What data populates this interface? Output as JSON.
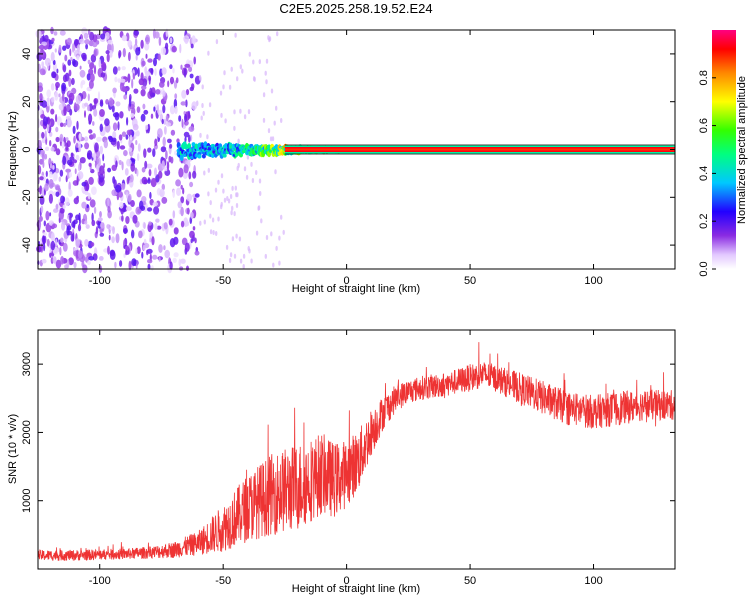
{
  "title": "C2E5.2025.258.19.52.E24",
  "chart_data": [
    {
      "type": "heatmap",
      "xlabel": "Height of straight line (km)",
      "ylabel": "Frequency (Hz)",
      "xlim": [
        -125,
        133
      ],
      "ylim": [
        -50,
        50
      ],
      "xticks": [
        -100,
        -50,
        0,
        50,
        100
      ],
      "yticks": [
        -40,
        -20,
        0,
        20,
        40
      ],
      "colorbar": {
        "label": "Normalized spectral amplitude",
        "range": [
          0,
          1
        ],
        "ticks": [
          "0.0",
          "0.2",
          "0.4",
          "0.6",
          "0.8"
        ]
      },
      "carrier": {
        "frequency": 0,
        "x_start": -68,
        "x_end": 133,
        "amplitude_profile": [
          {
            "x": -68,
            "amplitude": 0.45
          },
          {
            "x": -55,
            "amplitude": 0.4
          },
          {
            "x": -40,
            "amplitude": 0.5
          },
          {
            "x": -25,
            "amplitude": 0.75
          },
          {
            "x": -10,
            "amplitude": 0.85
          },
          {
            "x": 0,
            "amplitude": 0.9
          },
          {
            "x": 10,
            "amplitude": 0.95
          },
          {
            "x": 133,
            "amplitude": 0.95
          }
        ]
      },
      "noise_region": {
        "x_start": -125,
        "x_end": -60,
        "amplitude": 0.15
      }
    },
    {
      "type": "line",
      "xlabel": "Height of straight line (km)",
      "ylabel": "SNR (10 * v/v)",
      "xlim": [
        -125,
        133
      ],
      "ylim": [
        0,
        3500
      ],
      "xticks": [
        -100,
        -50,
        0,
        50,
        100
      ],
      "yticks": [
        1000,
        2000,
        3000
      ],
      "color": "#ee3333",
      "series": [
        {
          "x": [
            -125,
            -110,
            -100,
            -90,
            -80,
            -70,
            -60,
            -50,
            -40,
            -30,
            -20,
            -10,
            -5,
            0,
            5,
            10,
            15,
            20,
            25,
            30,
            40,
            50,
            55,
            60,
            70,
            80,
            90,
            100,
            110,
            120,
            133
          ],
          "y": [
            200,
            200,
            210,
            220,
            240,
            280,
            380,
            600,
            900,
            1100,
            1200,
            1400,
            1300,
            1400,
            1600,
            2000,
            2300,
            2500,
            2600,
            2650,
            2700,
            2800,
            2850,
            2800,
            2650,
            2500,
            2350,
            2300,
            2350,
            2400,
            2400
          ],
          "noise": [
            80,
            80,
            80,
            80,
            90,
            120,
            180,
            350,
            500,
            600,
            650,
            600,
            550,
            500,
            450,
            350,
            250,
            200,
            180,
            180,
            180,
            200,
            200,
            200,
            230,
            250,
            250,
            250,
            250,
            230,
            220
          ]
        }
      ]
    }
  ]
}
